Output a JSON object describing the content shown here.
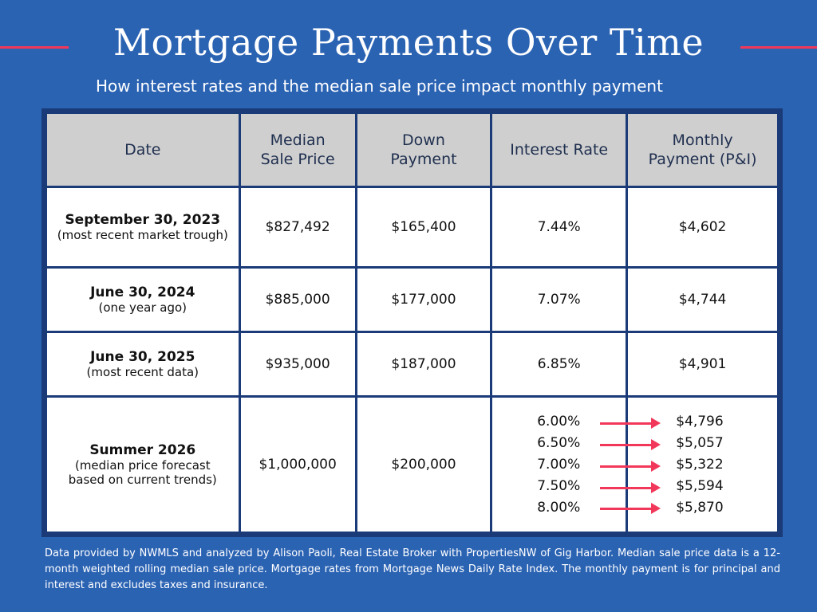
{
  "header": {
    "title": "Mortgage Payments Over Time",
    "subtitle": "How interest rates and the median sale price impact monthly payment"
  },
  "table": {
    "columns": [
      "Date",
      "Median Sale Price",
      "Down Payment",
      "Interest Rate",
      "Monthly Payment (P&I)"
    ],
    "col_lines": [
      [
        "Date"
      ],
      [
        "Median",
        "Sale Price"
      ],
      [
        "Down",
        "Payment"
      ],
      [
        "Interest Rate"
      ],
      [
        "Monthly",
        "Payment (P&I)"
      ]
    ],
    "rows": [
      {
        "date": "September 30, 2023",
        "date_note": "(most recent market trough)",
        "median_price": "$827,492",
        "down_payment": "$165,400",
        "interest_rate": "7.44%",
        "monthly_payment": "$4,602"
      },
      {
        "date": "June 30, 2024",
        "date_note": "(one year ago)",
        "median_price": "$885,000",
        "down_payment": "$177,000",
        "interest_rate": "7.07%",
        "monthly_payment": "$4,744"
      },
      {
        "date": "June 30, 2025",
        "date_note": "(most recent data)",
        "median_price": "$935,000",
        "down_payment": "$187,000",
        "interest_rate": "6.85%",
        "monthly_payment": "$4,901"
      }
    ],
    "forecast": {
      "date": "Summer 2026",
      "date_note": "(median price forecast based on current trends)",
      "median_price": "$1,000,000",
      "down_payment": "$200,000",
      "rates": [
        "6.00%",
        "6.50%",
        "7.00%",
        "7.50%",
        "8.00%"
      ],
      "payments": [
        "$4,796",
        "$5,057",
        "$5,322",
        "$5,594",
        "$5,870"
      ]
    }
  },
  "footnote": "Data provided by NWMLS and analyzed by Alison Paoli, Real Estate Broker with PropertiesNW of Gig Harbor. Median sale price data is a 12-month weighted rolling median sale price. Mortgage rates from Mortgage News Daily Rate Index. The monthly payment is for principal and interest and excludes taxes and insurance.",
  "colors": {
    "background": "#2b63b3",
    "accent": "#f2385a",
    "header_cell": "#cfcfcf",
    "border": "#1a3a78"
  }
}
